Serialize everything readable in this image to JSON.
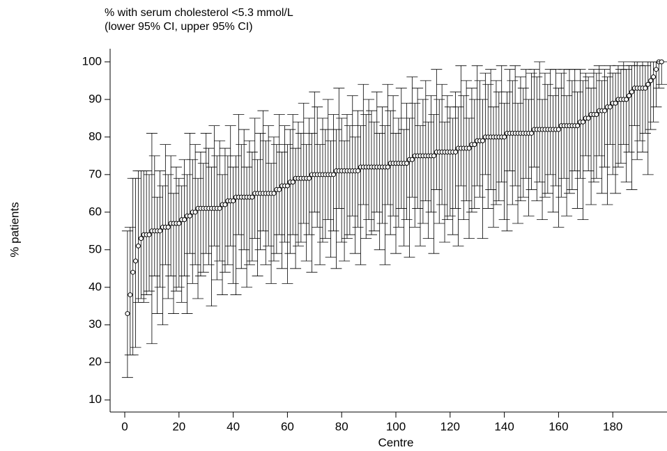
{
  "chart_data": {
    "type": "errorbar",
    "title": "% with serum cholesterol <5.3 mmol/L",
    "subtitle": "(lower 95% CI, upper 95% CI)",
    "x_label": "Centre",
    "y_label": "% patients",
    "color": "#000000",
    "xlim": [
      -5.4,
      200
    ],
    "ylim": [
      6.8,
      103.5
    ],
    "xticks": [
      0,
      20,
      40,
      60,
      80,
      100,
      120,
      140,
      160,
      180
    ],
    "yticks": [
      10,
      20,
      30,
      40,
      50,
      60,
      70,
      80,
      90,
      100
    ],
    "x": [
      1,
      2,
      3,
      4,
      5,
      6,
      7,
      8,
      9,
      10,
      11,
      12,
      13,
      14,
      15,
      16,
      17,
      18,
      19,
      20,
      21,
      22,
      23,
      24,
      25,
      26,
      27,
      28,
      29,
      30,
      31,
      32,
      33,
      34,
      35,
      36,
      37,
      38,
      39,
      40,
      41,
      42,
      43,
      44,
      45,
      46,
      47,
      48,
      49,
      50,
      51,
      52,
      53,
      54,
      55,
      56,
      57,
      58,
      59,
      60,
      61,
      62,
      63,
      64,
      65,
      66,
      67,
      68,
      69,
      70,
      71,
      72,
      73,
      74,
      75,
      76,
      77,
      78,
      79,
      80,
      81,
      82,
      83,
      84,
      85,
      86,
      87,
      88,
      89,
      90,
      91,
      92,
      93,
      94,
      95,
      96,
      97,
      98,
      99,
      100,
      101,
      102,
      103,
      104,
      105,
      106,
      107,
      108,
      109,
      110,
      111,
      112,
      113,
      114,
      115,
      116,
      117,
      118,
      119,
      120,
      121,
      122,
      123,
      124,
      125,
      126,
      127,
      128,
      129,
      130,
      131,
      132,
      133,
      134,
      135,
      136,
      137,
      138,
      139,
      140,
      141,
      142,
      143,
      144,
      145,
      146,
      147,
      148,
      149,
      150,
      151,
      152,
      153,
      154,
      155,
      156,
      157,
      158,
      159,
      160,
      161,
      162,
      163,
      164,
      165,
      166,
      167,
      168,
      169,
      170,
      171,
      172,
      173,
      174,
      175,
      176,
      177,
      178,
      179,
      180,
      181,
      182,
      183,
      184,
      185,
      186,
      187,
      188,
      189,
      190,
      191,
      192,
      193,
      194,
      195,
      196,
      197,
      198
    ],
    "values": [
      33,
      38,
      44,
      47,
      51,
      53,
      54,
      54,
      54,
      55,
      55,
      55,
      55,
      56,
      56,
      56,
      57,
      57,
      57,
      57,
      58,
      58,
      59,
      59,
      60,
      60,
      61,
      61,
      61,
      61,
      61,
      61,
      61,
      61,
      61,
      62,
      62,
      63,
      63,
      63,
      64,
      64,
      64,
      64,
      64,
      64,
      64,
      65,
      65,
      65,
      65,
      65,
      65,
      65,
      65,
      66,
      66,
      67,
      67,
      67,
      68,
      68,
      69,
      69,
      69,
      69,
      69,
      69,
      70,
      70,
      70,
      70,
      70,
      70,
      70,
      70,
      70,
      71,
      71,
      71,
      71,
      71,
      71,
      71,
      71,
      71,
      72,
      72,
      72,
      72,
      72,
      72,
      72,
      72,
      72,
      72,
      72,
      73,
      73,
      73,
      73,
      73,
      73,
      73,
      74,
      74,
      75,
      75,
      75,
      75,
      75,
      75,
      75,
      75,
      76,
      76,
      76,
      76,
      76,
      76,
      76,
      76,
      77,
      77,
      77,
      77,
      77,
      78,
      78,
      79,
      79,
      79,
      80,
      80,
      80,
      80,
      80,
      80,
      80,
      80,
      81,
      81,
      81,
      81,
      81,
      81,
      81,
      81,
      81,
      81,
      82,
      82,
      82,
      82,
      82,
      82,
      82,
      82,
      82,
      82,
      83,
      83,
      83,
      83,
      83,
      83,
      83,
      84,
      84,
      85,
      85,
      86,
      86,
      86,
      87,
      87,
      87,
      88,
      88,
      89,
      89,
      90,
      90,
      90,
      90,
      91,
      92,
      93,
      93,
      93,
      93,
      93,
      94,
      95,
      96,
      98,
      100,
      100
    ],
    "lower": [
      16,
      22,
      22,
      24,
      36,
      37,
      36,
      38,
      39,
      25,
      43,
      33,
      40,
      30,
      46,
      37,
      43,
      33,
      39,
      40,
      36,
      43,
      33,
      49,
      41,
      46,
      37,
      43,
      44,
      49,
      46,
      35,
      51,
      42,
      47,
      38,
      44,
      46,
      51,
      41,
      38,
      54,
      45,
      50,
      40,
      46,
      47,
      53,
      43,
      50,
      55,
      46,
      51,
      41,
      47,
      49,
      54,
      45,
      52,
      41,
      49,
      54,
      45,
      51,
      52,
      57,
      47,
      54,
      44,
      60,
      56,
      46,
      52,
      53,
      58,
      48,
      55,
      45,
      61,
      52,
      47,
      53,
      54,
      59,
      49,
      56,
      46,
      62,
      53,
      58,
      54,
      55,
      60,
      50,
      57,
      46,
      62,
      54,
      59,
      49,
      56,
      61,
      51,
      58,
      48,
      64,
      56,
      61,
      51,
      57,
      63,
      53,
      60,
      49,
      66,
      57,
      62,
      52,
      58,
      59,
      54,
      61,
      51,
      67,
      58,
      63,
      53,
      60,
      61,
      67,
      64,
      53,
      70,
      61,
      66,
      56,
      62,
      63,
      68,
      58,
      55,
      71,
      62,
      67,
      57,
      63,
      64,
      69,
      59,
      66,
      72,
      63,
      68,
      58,
      64,
      65,
      70,
      60,
      67,
      56,
      64,
      69,
      59,
      65,
      66,
      71,
      61,
      69,
      58,
      75,
      71,
      62,
      68,
      69,
      75,
      65,
      72,
      62,
      78,
      70,
      65,
      72,
      73,
      78,
      68,
      76,
      66,
      83,
      74,
      79,
      76,
      81,
      70,
      82,
      84,
      88,
      93,
      94
    ],
    "upper": [
      55,
      56,
      69,
      69,
      71,
      71,
      71,
      71,
      70,
      81,
      75,
      64,
      71,
      67,
      78,
      70,
      75,
      65,
      72,
      69,
      67,
      74,
      70,
      81,
      74,
      78,
      69,
      76,
      73,
      81,
      77,
      72,
      83,
      75,
      79,
      70,
      77,
      75,
      83,
      72,
      75,
      86,
      78,
      82,
      72,
      79,
      76,
      85,
      74,
      81,
      87,
      79,
      83,
      73,
      80,
      78,
      86,
      76,
      83,
      78,
      82,
      86,
      77,
      84,
      81,
      89,
      78,
      85,
      81,
      92,
      88,
      78,
      85,
      82,
      90,
      79,
      86,
      82,
      93,
      85,
      79,
      86,
      83,
      91,
      80,
      87,
      83,
      94,
      86,
      90,
      87,
      84,
      92,
      81,
      88,
      83,
      94,
      87,
      91,
      81,
      85,
      93,
      82,
      89,
      85,
      96,
      89,
      93,
      83,
      90,
      95,
      84,
      91,
      86,
      98,
      90,
      94,
      84,
      91,
      88,
      85,
      92,
      88,
      99,
      91,
      95,
      85,
      93,
      90,
      99,
      95,
      90,
      97,
      94,
      98,
      88,
      95,
      92,
      99,
      89,
      92,
      98,
      95,
      99,
      89,
      96,
      93,
      98,
      90,
      97,
      98,
      96,
      100,
      90,
      97,
      94,
      98,
      91,
      98,
      93,
      97,
      98,
      91,
      98,
      95,
      98,
      92,
      98,
      95,
      97,
      96,
      93,
      98,
      97,
      99,
      95,
      98,
      96,
      99,
      97,
      97,
      99,
      98,
      100,
      98,
      99,
      99,
      100,
      100,
      99,
      100,
      99,
      100,
      100,
      100,
      100,
      100,
      100
    ]
  }
}
